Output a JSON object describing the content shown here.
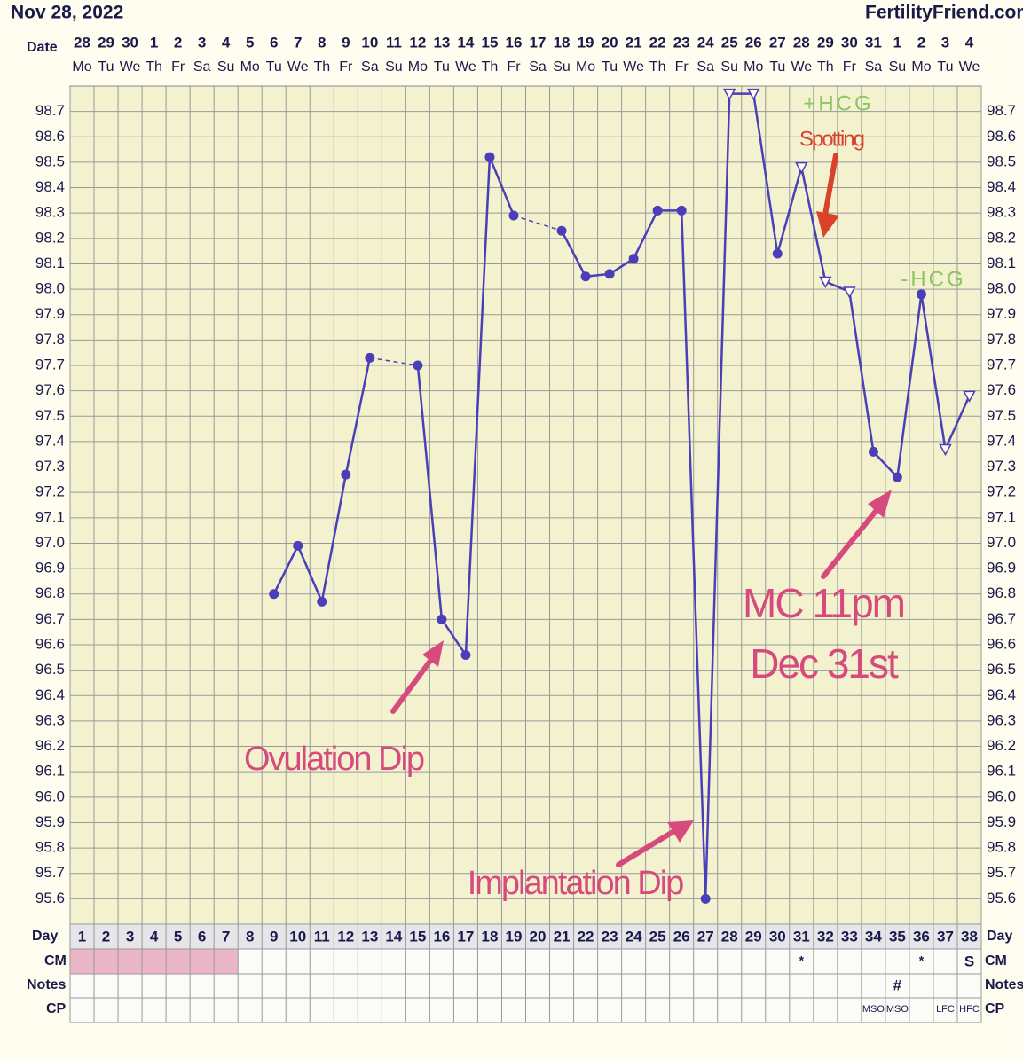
{
  "chart_data": {
    "type": "line",
    "title": "Nov 28, 2022",
    "site": "FertilityFriend.com",
    "date_label": "Date",
    "day_label": "Day",
    "cm_label": "CM",
    "notes_label": "Notes",
    "cp_label": "CP",
    "dates": [
      "28",
      "29",
      "30",
      "1",
      "2",
      "3",
      "4",
      "5",
      "6",
      "7",
      "8",
      "9",
      "10",
      "11",
      "12",
      "13",
      "14",
      "15",
      "16",
      "17",
      "18",
      "19",
      "20",
      "21",
      "22",
      "23",
      "24",
      "25",
      "26",
      "27",
      "28",
      "29",
      "30",
      "31",
      "1",
      "2",
      "3",
      "4"
    ],
    "weekdays": [
      "Mo",
      "Tu",
      "We",
      "Th",
      "Fr",
      "Sa",
      "Su",
      "Mo",
      "Tu",
      "We",
      "Th",
      "Fr",
      "Sa",
      "Su",
      "Mo",
      "Tu",
      "We",
      "Th",
      "Fr",
      "Sa",
      "Su",
      "Mo",
      "Tu",
      "We",
      "Th",
      "Fr",
      "Sa",
      "Su",
      "Mo",
      "Tu",
      "We",
      "Th",
      "Fr",
      "Sa",
      "Su",
      "Mo",
      "Tu",
      "We"
    ],
    "categories": [
      1,
      2,
      3,
      4,
      5,
      6,
      7,
      8,
      9,
      10,
      11,
      12,
      13,
      14,
      15,
      16,
      17,
      18,
      19,
      20,
      21,
      22,
      23,
      24,
      25,
      26,
      27,
      28,
      29,
      30,
      31,
      32,
      33,
      34,
      35,
      36,
      37,
      38
    ],
    "series": [
      {
        "name": "Temperature",
        "color": "#4a3fb8",
        "values": [
          null,
          null,
          null,
          null,
          null,
          null,
          null,
          null,
          96.8,
          96.99,
          96.77,
          97.27,
          97.73,
          null,
          97.7,
          96.7,
          96.56,
          98.52,
          98.29,
          null,
          98.23,
          98.05,
          98.06,
          98.12,
          98.31,
          98.31,
          95.6,
          98.77,
          98.77,
          98.14,
          98.48,
          98.03,
          97.99,
          97.36,
          97.26,
          97.98,
          97.37,
          97.58
        ],
        "open": [
          false,
          false,
          false,
          false,
          false,
          false,
          false,
          false,
          false,
          false,
          false,
          false,
          false,
          false,
          false,
          false,
          false,
          false,
          false,
          false,
          false,
          false,
          false,
          false,
          false,
          false,
          false,
          true,
          true,
          false,
          true,
          true,
          true,
          false,
          false,
          false,
          true,
          true
        ]
      }
    ],
    "cm": [
      null,
      null,
      null,
      null,
      null,
      null,
      null,
      null,
      null,
      null,
      null,
      null,
      null,
      null,
      null,
      null,
      null,
      null,
      null,
      null,
      null,
      null,
      null,
      null,
      null,
      null,
      null,
      null,
      null,
      null,
      "*",
      null,
      null,
      null,
      null,
      "*",
      null,
      "S"
    ],
    "cm_shaded": [
      true,
      true,
      true,
      true,
      true,
      true,
      true,
      false,
      false,
      false,
      false,
      false,
      false,
      false,
      false,
      false,
      false,
      false,
      false,
      false,
      false,
      false,
      false,
      false,
      false,
      false,
      false,
      false,
      false,
      false,
      false,
      false,
      false,
      false,
      false,
      false,
      false,
      false
    ],
    "notes": [
      null,
      null,
      null,
      null,
      null,
      null,
      null,
      null,
      null,
      null,
      null,
      null,
      null,
      null,
      null,
      null,
      null,
      null,
      null,
      null,
      null,
      null,
      null,
      null,
      null,
      null,
      null,
      null,
      null,
      null,
      null,
      null,
      null,
      null,
      "#",
      null,
      null,
      null
    ],
    "cp": [
      null,
      null,
      null,
      null,
      null,
      null,
      null,
      null,
      null,
      null,
      null,
      null,
      null,
      null,
      null,
      null,
      null,
      null,
      null,
      null,
      null,
      null,
      null,
      null,
      null,
      null,
      null,
      null,
      null,
      null,
      null,
      null,
      null,
      "MSO",
      "MSO",
      null,
      "LFC",
      "HFC"
    ],
    "ylim": [
      95.5,
      98.8
    ],
    "yticks": [
      95.6,
      95.7,
      95.8,
      95.9,
      {
        "value": 96,
        "label": "96.0"
      },
      96.1,
      96.2,
      96.3,
      96.4,
      96.5,
      96.6,
      96.7,
      96.8,
      96.9,
      {
        "value": 97,
        "label": "97.0"
      },
      97.1,
      97.2,
      97.3,
      97.4,
      97.5,
      97.6,
      97.7,
      97.8,
      97.9,
      {
        "value": 98,
        "label": "98.0"
      },
      98.1,
      98.2,
      98.3,
      98.4,
      98.5,
      98.6,
      98.7
    ],
    "grid": true,
    "annotations": [
      "+HCG",
      "Spotting",
      "-HCG",
      "Ovulation Dip",
      "Implantation Dip",
      "MC 11pm",
      "Dec 31st"
    ]
  }
}
